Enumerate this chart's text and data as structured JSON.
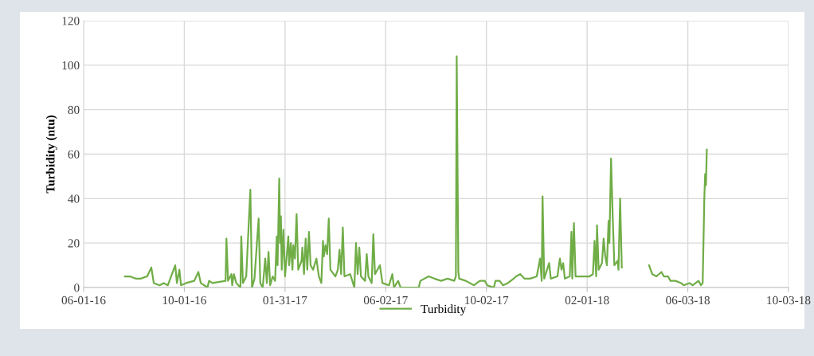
{
  "chart_data": {
    "type": "line",
    "ylabel": "Turbidity (ntu)",
    "legend": "bottom",
    "grid": true,
    "marker": "none",
    "line_style": "solid",
    "xlim": [
      "2016-06-01",
      "2018-10-03"
    ],
    "xticks": [
      {
        "value": "2016-06-01",
        "label": "06-01-16"
      },
      {
        "value": "2016-10-01",
        "label": "10-01-16"
      },
      {
        "value": "2017-01-31",
        "label": "01-31-17"
      },
      {
        "value": "2017-06-02",
        "label": "06-02-17"
      },
      {
        "value": "2017-10-02",
        "label": "10-02-17"
      },
      {
        "value": "2018-02-01",
        "label": "02-01-18"
      },
      {
        "value": "2018-06-03",
        "label": "06-03-18"
      },
      {
        "value": "2018-10-03",
        "label": "10-03-18"
      }
    ],
    "ylim": [
      0,
      120
    ],
    "yticks": [
      0,
      20,
      40,
      60,
      80,
      100,
      120
    ],
    "x": [
      "2016-07-21",
      "2016-07-27",
      "2016-08-03",
      "2016-08-09",
      "2016-08-17",
      "2016-08-22",
      "2016-08-25",
      "2016-09-01",
      "2016-09-06",
      "2016-09-11",
      "2016-09-20",
      "2016-09-22",
      "2016-09-25",
      "2016-09-27",
      "2016-10-03",
      "2016-10-13",
      "2016-10-18",
      "2016-10-21",
      "2016-10-29",
      "2016-10-31",
      "2016-11-04",
      "2016-11-20",
      "2016-11-21",
      "2016-11-23",
      "2016-11-27",
      "2016-11-28",
      "2016-11-30",
      "2016-12-03",
      "2016-12-08",
      "2016-12-09",
      "2016-12-11",
      "2016-12-15",
      "2016-12-20",
      "2016-12-22",
      "2016-12-25",
      "2016-12-30",
      "2017-01-01",
      "2017-01-04",
      "2017-01-07",
      "2017-01-09",
      "2017-01-11",
      "2017-01-13",
      "2017-01-16",
      "2017-01-19",
      "2017-01-21",
      "2017-01-22",
      "2017-01-24",
      "2017-01-25",
      "2017-01-26",
      "2017-01-27",
      "2017-01-29",
      "2017-01-31",
      "2017-02-04",
      "2017-02-05",
      "2017-02-07",
      "2017-02-09",
      "2017-02-10",
      "2017-02-12",
      "2017-02-14",
      "2017-02-16",
      "2017-02-20",
      "2017-02-21",
      "2017-02-23",
      "2017-02-25",
      "2017-02-27",
      "2017-03-01",
      "2017-03-03",
      "2017-03-06",
      "2017-03-10",
      "2017-03-13",
      "2017-03-16",
      "2017-03-18",
      "2017-03-19",
      "2017-03-21",
      "2017-03-23",
      "2017-03-25",
      "2017-03-27",
      "2017-04-02",
      "2017-04-05",
      "2017-04-07",
      "2017-04-09",
      "2017-04-11",
      "2017-04-13",
      "2017-04-20",
      "2017-04-25",
      "2017-04-27",
      "2017-04-29",
      "2017-05-01",
      "2017-05-03",
      "2017-05-08",
      "2017-05-10",
      "2017-05-12",
      "2017-05-16",
      "2017-05-18",
      "2017-05-20",
      "2017-05-26",
      "2017-05-29",
      "2017-06-06",
      "2017-06-10",
      "2017-06-12",
      "2017-06-17",
      "2017-06-20",
      "2017-06-30",
      "2017-07-12",
      "2017-07-14",
      "2017-07-24",
      "2017-07-31",
      "2017-08-08",
      "2017-08-16",
      "2017-08-24",
      "2017-08-26",
      "2017-08-27",
      "2017-08-29",
      "2017-08-30",
      "2017-09-07",
      "2017-09-17",
      "2017-09-24",
      "2017-09-30",
      "2017-10-03",
      "2017-10-11",
      "2017-10-13",
      "2017-10-18",
      "2017-10-22",
      "2017-10-28",
      "2017-11-04",
      "2017-11-07",
      "2017-11-12",
      "2017-11-17",
      "2017-11-24",
      "2017-12-02",
      "2017-12-06",
      "2017-12-08",
      "2017-12-09",
      "2017-12-11",
      "2017-12-17",
      "2017-12-19",
      "2017-12-27",
      "2017-12-30",
      "2018-01-01",
      "2018-01-03",
      "2018-01-05",
      "2018-01-11",
      "2018-01-13",
      "2018-01-14",
      "2018-01-16",
      "2018-01-18",
      "2018-01-25",
      "2018-02-04",
      "2018-02-08",
      "2018-02-10",
      "2018-02-12",
      "2018-02-13",
      "2018-02-15",
      "2018-02-19",
      "2018-02-21",
      "2018-02-23",
      "2018-02-25",
      "2018-02-27",
      "2018-02-28",
      "2018-03-02",
      "2018-03-04",
      "2018-03-06",
      "2018-03-10",
      "2018-03-11",
      "2018-03-13",
      "2018-03-15",
      "2018-03-31",
      "2018-04-17",
      "2018-04-19",
      "2018-04-21",
      "2018-04-26",
      "2018-05-02",
      "2018-05-05",
      "2018-05-10",
      "2018-05-13",
      "2018-05-19",
      "2018-05-26",
      "2018-05-29",
      "2018-06-05",
      "2018-06-09",
      "2018-06-16",
      "2018-06-19",
      "2018-06-21",
      "2018-06-23",
      "2018-06-24",
      "2018-06-25",
      "2018-06-26"
    ],
    "series": [
      {
        "name": "Turbidity",
        "color": "#70ad47",
        "values": [
          5,
          5,
          4,
          4,
          5,
          9,
          2,
          1,
          2,
          1,
          10,
          2,
          8,
          1,
          2,
          3,
          7,
          2,
          0,
          3,
          2,
          3,
          22,
          3,
          6,
          1,
          6,
          2,
          0,
          23,
          2,
          5,
          44,
          0,
          4,
          31,
          2,
          0,
          13,
          2,
          16,
          1,
          5,
          3,
          23,
          10,
          49,
          20,
          32,
          8,
          26,
          5,
          23,
          10,
          20,
          8,
          19,
          13,
          33,
          8,
          12,
          18,
          6,
          22,
          8,
          25,
          10,
          8,
          13,
          5,
          2,
          21,
          14,
          19,
          15,
          31,
          8,
          5,
          8,
          17,
          6,
          27,
          5,
          6,
          0,
          20,
          6,
          18,
          5,
          3,
          15,
          5,
          2,
          24,
          6,
          10,
          2,
          1,
          6,
          0,
          3,
          0,
          0,
          0,
          3,
          5,
          4,
          3,
          4,
          3,
          5,
          104,
          7,
          4,
          3,
          1,
          3,
          3,
          1,
          0,
          3,
          3,
          1,
          2,
          4,
          5,
          6,
          4,
          4,
          5,
          13,
          3,
          41,
          4,
          11,
          4,
          5,
          13,
          8,
          11,
          4,
          5,
          25,
          4,
          29,
          5,
          5,
          5,
          6,
          21,
          5,
          28,
          8,
          11,
          22,
          14,
          10,
          30,
          20,
          58,
          32,
          10,
          12,
          8,
          40,
          9,
          null,
          10,
          8,
          6,
          5,
          7,
          5,
          5,
          3,
          3,
          2,
          1,
          2,
          1,
          3,
          1,
          2,
          40,
          51,
          46,
          62
        ]
      }
    ]
  }
}
